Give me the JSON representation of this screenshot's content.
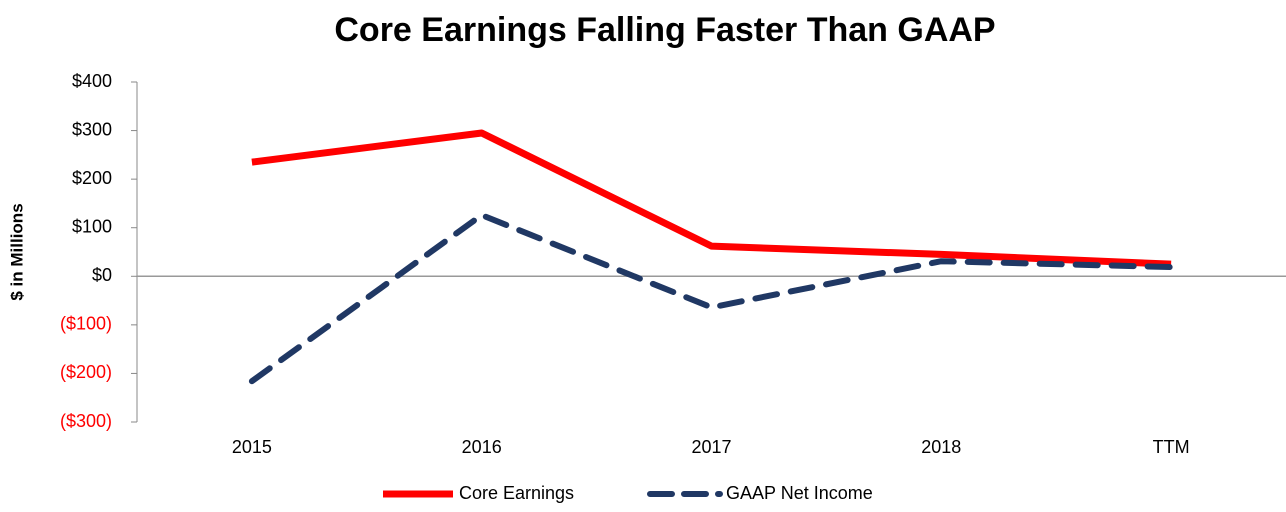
{
  "chart_data": {
    "type": "line",
    "title": "Core Earnings Falling Faster Than GAAP",
    "y_label": "$ in Millions",
    "categories": [
      "2015",
      "2016",
      "2017",
      "2018",
      "TTM"
    ],
    "series": [
      {
        "name": "Core Earnings",
        "color": "#ff0000",
        "dash": false,
        "values": [
          235,
          295,
          62,
          45,
          25
        ]
      },
      {
        "name": "GAAP Net Income",
        "color": "#203864",
        "dash": true,
        "values": [
          -216,
          126,
          -64,
          31,
          19
        ]
      }
    ],
    "ylim": [
      -300,
      400
    ],
    "yticks": [
      {
        "value": 400,
        "label": "$400"
      },
      {
        "value": 300,
        "label": "$300"
      },
      {
        "value": 200,
        "label": "$200"
      },
      {
        "value": 100,
        "label": "$100"
      },
      {
        "value": 0,
        "label": "$0"
      },
      {
        "value": -100,
        "label": "($100)"
      },
      {
        "value": -200,
        "label": "($200)"
      },
      {
        "value": -300,
        "label": "($300)"
      }
    ],
    "negative_label_color": "#ff0000",
    "legend": "bottom"
  }
}
